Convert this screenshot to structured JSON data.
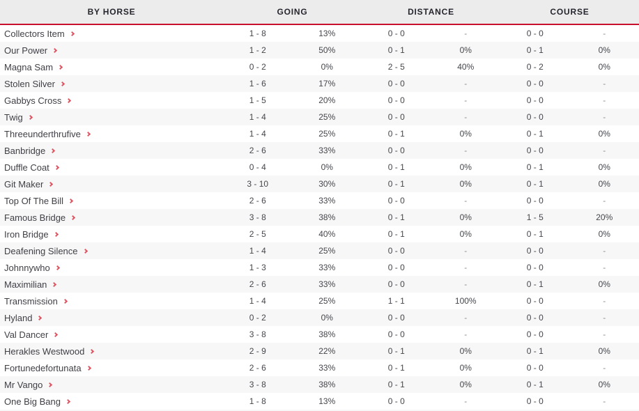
{
  "colors": {
    "header_bg": "#ececec",
    "header_text": "#26262e",
    "header_rule": "#c8102e",
    "row_alt_bg": "#f7f7f7",
    "text": "#45464c",
    "muted": "#8d8d93",
    "chevron": "#e05561"
  },
  "table": {
    "columns": [
      {
        "id": "horse",
        "label": "BY HORSE"
      },
      {
        "id": "going",
        "label": "GOING"
      },
      {
        "id": "distance",
        "label": "DISTANCE"
      },
      {
        "id": "course",
        "label": "COURSE"
      }
    ],
    "rows": [
      {
        "horse": "Collectors Item",
        "going": "1 - 8",
        "going_pct": "13%",
        "distance": "0 - 0",
        "distance_pct": "-",
        "course": "0 - 0",
        "course_pct": "-"
      },
      {
        "horse": "Our Power",
        "going": "1 - 2",
        "going_pct": "50%",
        "distance": "0 - 1",
        "distance_pct": "0%",
        "course": "0 - 1",
        "course_pct": "0%"
      },
      {
        "horse": "Magna Sam",
        "going": "0 - 2",
        "going_pct": "0%",
        "distance": "2 - 5",
        "distance_pct": "40%",
        "course": "0 - 2",
        "course_pct": "0%"
      },
      {
        "horse": "Stolen Silver",
        "going": "1 - 6",
        "going_pct": "17%",
        "distance": "0 - 0",
        "distance_pct": "-",
        "course": "0 - 0",
        "course_pct": "-"
      },
      {
        "horse": "Gabbys Cross",
        "going": "1 - 5",
        "going_pct": "20%",
        "distance": "0 - 0",
        "distance_pct": "-",
        "course": "0 - 0",
        "course_pct": "-"
      },
      {
        "horse": "Twig",
        "going": "1 - 4",
        "going_pct": "25%",
        "distance": "0 - 0",
        "distance_pct": "-",
        "course": "0 - 0",
        "course_pct": "-"
      },
      {
        "horse": "Threeunderthrufive",
        "going": "1 - 4",
        "going_pct": "25%",
        "distance": "0 - 1",
        "distance_pct": "0%",
        "course": "0 - 1",
        "course_pct": "0%"
      },
      {
        "horse": "Banbridge",
        "going": "2 - 6",
        "going_pct": "33%",
        "distance": "0 - 0",
        "distance_pct": "-",
        "course": "0 - 0",
        "course_pct": "-"
      },
      {
        "horse": "Duffle Coat",
        "going": "0 - 4",
        "going_pct": "0%",
        "distance": "0 - 1",
        "distance_pct": "0%",
        "course": "0 - 1",
        "course_pct": "0%"
      },
      {
        "horse": "Git Maker",
        "going": "3 - 10",
        "going_pct": "30%",
        "distance": "0 - 1",
        "distance_pct": "0%",
        "course": "0 - 1",
        "course_pct": "0%"
      },
      {
        "horse": "Top Of The Bill",
        "going": "2 - 6",
        "going_pct": "33%",
        "distance": "0 - 0",
        "distance_pct": "-",
        "course": "0 - 0",
        "course_pct": "-"
      },
      {
        "horse": "Famous Bridge",
        "going": "3 - 8",
        "going_pct": "38%",
        "distance": "0 - 1",
        "distance_pct": "0%",
        "course": "1 - 5",
        "course_pct": "20%"
      },
      {
        "horse": "Iron Bridge",
        "going": "2 - 5",
        "going_pct": "40%",
        "distance": "0 - 1",
        "distance_pct": "0%",
        "course": "0 - 1",
        "course_pct": "0%"
      },
      {
        "horse": "Deafening Silence",
        "going": "1 - 4",
        "going_pct": "25%",
        "distance": "0 - 0",
        "distance_pct": "-",
        "course": "0 - 0",
        "course_pct": "-"
      },
      {
        "horse": "Johnnywho",
        "going": "1 - 3",
        "going_pct": "33%",
        "distance": "0 - 0",
        "distance_pct": "-",
        "course": "0 - 0",
        "course_pct": "-"
      },
      {
        "horse": "Maximilian",
        "going": "2 - 6",
        "going_pct": "33%",
        "distance": "0 - 0",
        "distance_pct": "-",
        "course": "0 - 1",
        "course_pct": "0%"
      },
      {
        "horse": "Transmission",
        "going": "1 - 4",
        "going_pct": "25%",
        "distance": "1 - 1",
        "distance_pct": "100%",
        "course": "0 - 0",
        "course_pct": "-"
      },
      {
        "horse": "Hyland",
        "going": "0 - 2",
        "going_pct": "0%",
        "distance": "0 - 0",
        "distance_pct": "-",
        "course": "0 - 0",
        "course_pct": "-"
      },
      {
        "horse": "Val Dancer",
        "going": "3 - 8",
        "going_pct": "38%",
        "distance": "0 - 0",
        "distance_pct": "-",
        "course": "0 - 0",
        "course_pct": "-"
      },
      {
        "horse": "Herakles Westwood",
        "going": "2 - 9",
        "going_pct": "22%",
        "distance": "0 - 1",
        "distance_pct": "0%",
        "course": "0 - 1",
        "course_pct": "0%"
      },
      {
        "horse": "Fortunedefortunata",
        "going": "2 - 6",
        "going_pct": "33%",
        "distance": "0 - 1",
        "distance_pct": "0%",
        "course": "0 - 0",
        "course_pct": "-"
      },
      {
        "horse": "Mr Vango",
        "going": "3 - 8",
        "going_pct": "38%",
        "distance": "0 - 1",
        "distance_pct": "0%",
        "course": "0 - 1",
        "course_pct": "0%"
      },
      {
        "horse": "One Big Bang",
        "going": "1 - 8",
        "going_pct": "13%",
        "distance": "0 - 0",
        "distance_pct": "-",
        "course": "0 - 0",
        "course_pct": "-"
      }
    ]
  }
}
